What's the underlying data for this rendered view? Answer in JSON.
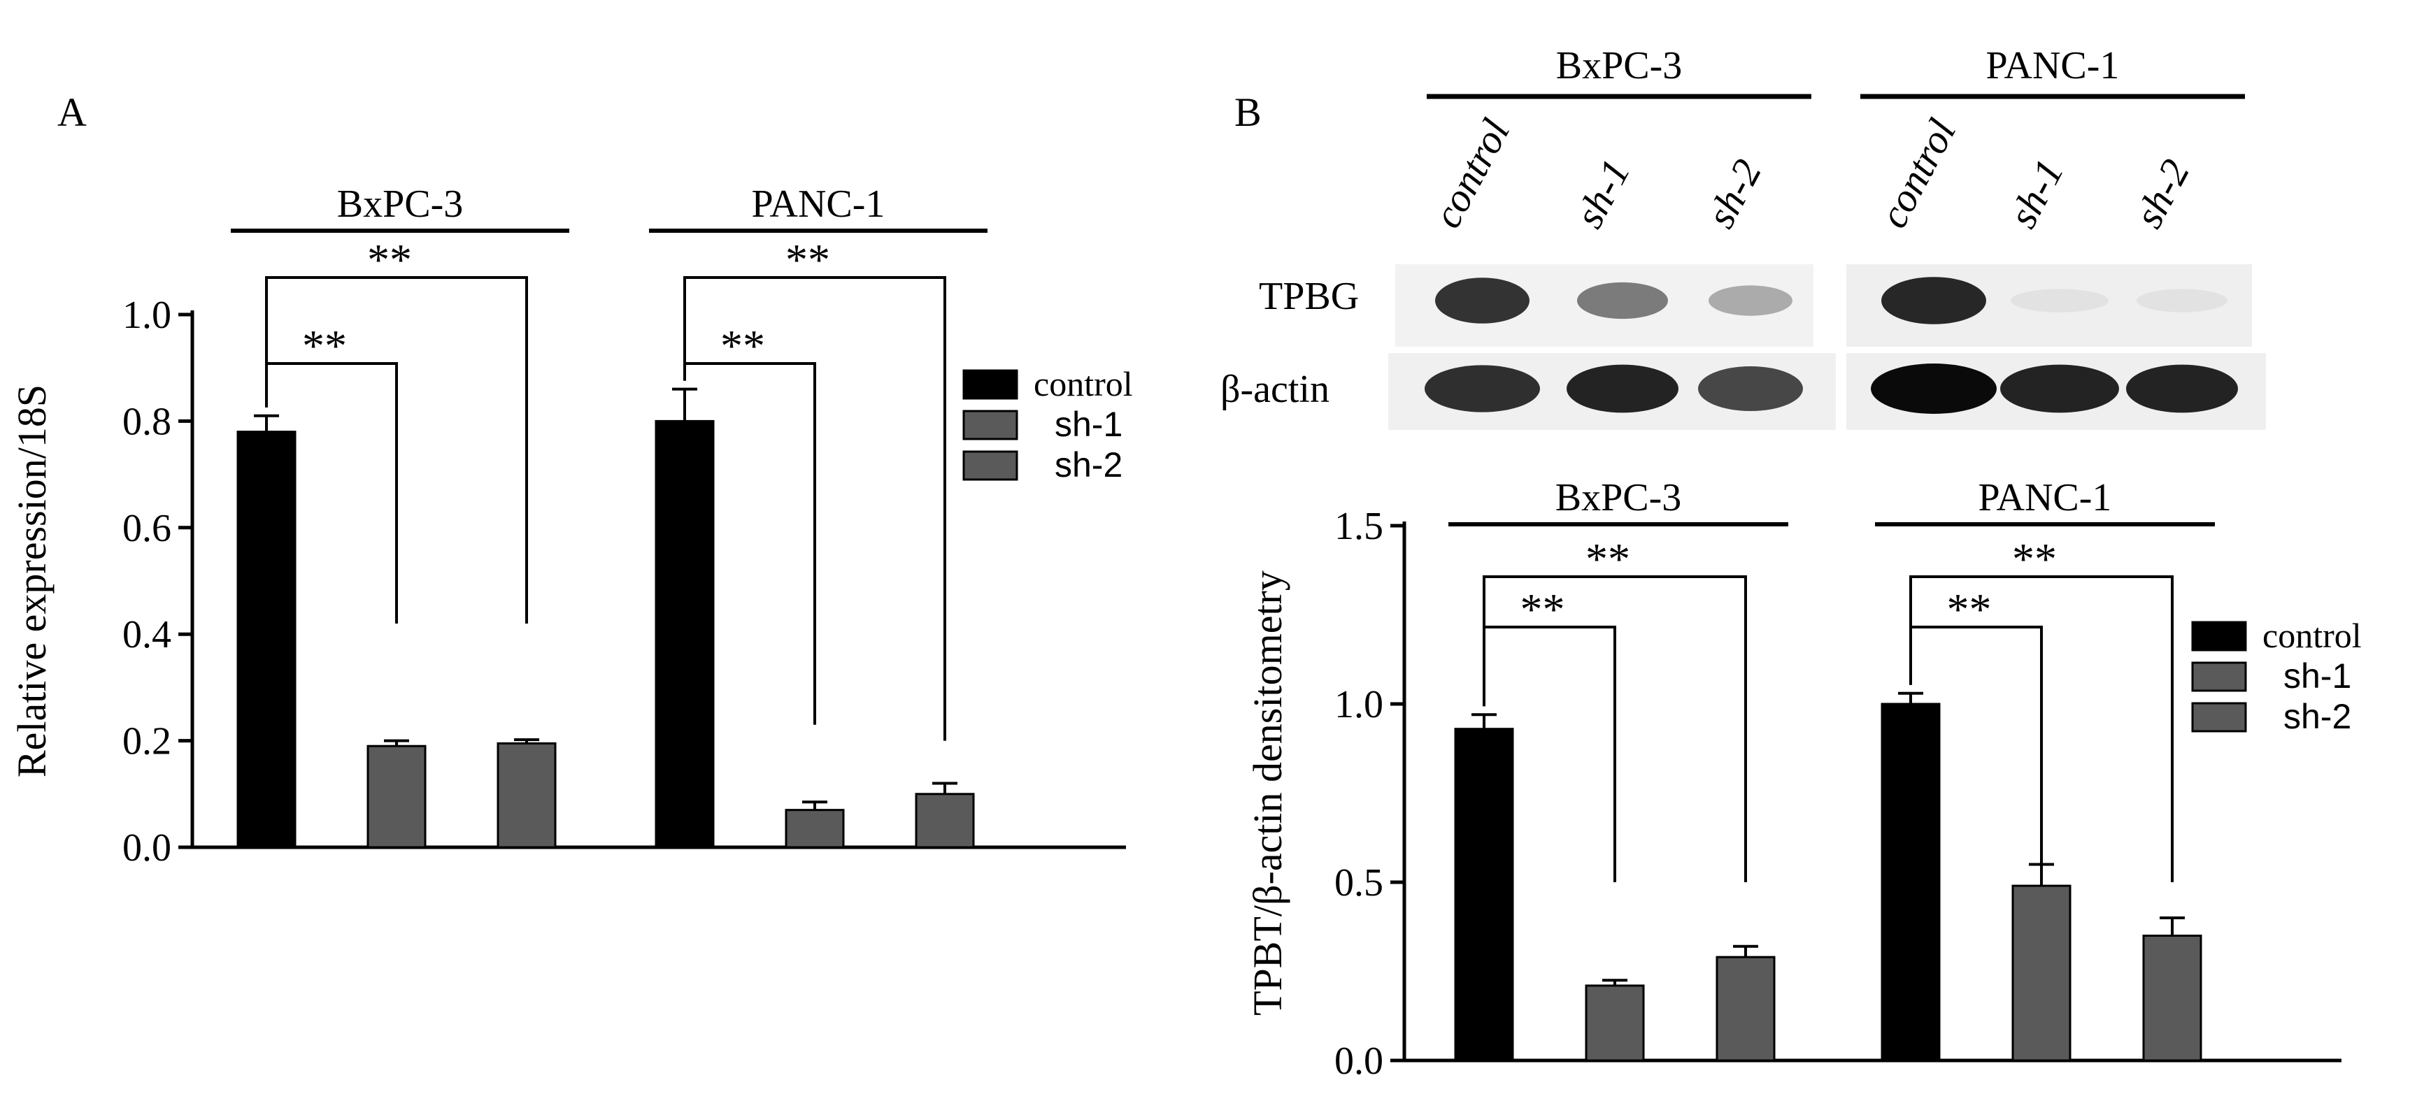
{
  "colors": {
    "control": "#000000",
    "sh": "#5a5a5a",
    "axis": "#000000",
    "background": "#ffffff"
  },
  "panel_a": {
    "label": "A",
    "legend": [
      "control",
      "sh-1",
      "sh-2"
    ]
  },
  "panel_b": {
    "label": "B",
    "blot_group_labels": [
      "BxPC-3",
      "PANC-1"
    ],
    "blot_lane_labels": [
      "control",
      "sh-1",
      "sh-2",
      "control",
      "sh-1",
      "sh-2"
    ],
    "blot_row_labels": [
      "TPBG",
      "β-actin"
    ],
    "blot_band_intensity": {
      "TPBG": [
        0.85,
        0.55,
        0.35,
        0.9,
        0.12,
        0.12
      ],
      "β-actin": [
        0.85,
        0.9,
        0.75,
        1.0,
        0.9,
        0.9
      ]
    },
    "legend": [
      "control",
      "sh-1",
      "sh-2"
    ]
  },
  "chart_data": [
    {
      "type": "bar",
      "panel": "A",
      "title": "",
      "xlabel": "",
      "ylabel": "Relative expression/18S",
      "ylim": [
        0,
        1.0
      ],
      "yticks": [
        "0.0",
        "0.2",
        "0.4",
        "0.6",
        "0.8",
        "1.0"
      ],
      "groups": [
        "BxPC-3",
        "PANC-1"
      ],
      "legend_position": "right",
      "series": [
        {
          "name": "control",
          "values": [
            0.78,
            0.8
          ],
          "errors": [
            0.03,
            0.06
          ]
        },
        {
          "name": "sh-1",
          "values": [
            0.19,
            0.07
          ],
          "errors": [
            0.01,
            0.015
          ]
        },
        {
          "name": "sh-2",
          "values": [
            0.195,
            0.1
          ],
          "errors": [
            0.007,
            0.02
          ]
        }
      ],
      "annotations": [
        "**",
        "**",
        "**",
        "**"
      ]
    },
    {
      "type": "bar",
      "panel": "B",
      "title": "",
      "xlabel": "",
      "ylabel": "TPBT/β-actin densitometry",
      "ylim": [
        0,
        1.5
      ],
      "yticks": [
        "0.0",
        "0.5",
        "1.0",
        "1.5"
      ],
      "groups": [
        "BxPC-3",
        "PANC-1"
      ],
      "legend_position": "right",
      "series": [
        {
          "name": "control",
          "values": [
            0.93,
            1.0
          ],
          "errors": [
            0.04,
            0.03
          ]
        },
        {
          "name": "sh-1",
          "values": [
            0.21,
            0.49
          ],
          "errors": [
            0.015,
            0.06
          ]
        },
        {
          "name": "sh-2",
          "values": [
            0.29,
            0.35
          ],
          "errors": [
            0.03,
            0.05
          ]
        }
      ],
      "annotations": [
        "**",
        "**",
        "**",
        "**"
      ]
    }
  ]
}
